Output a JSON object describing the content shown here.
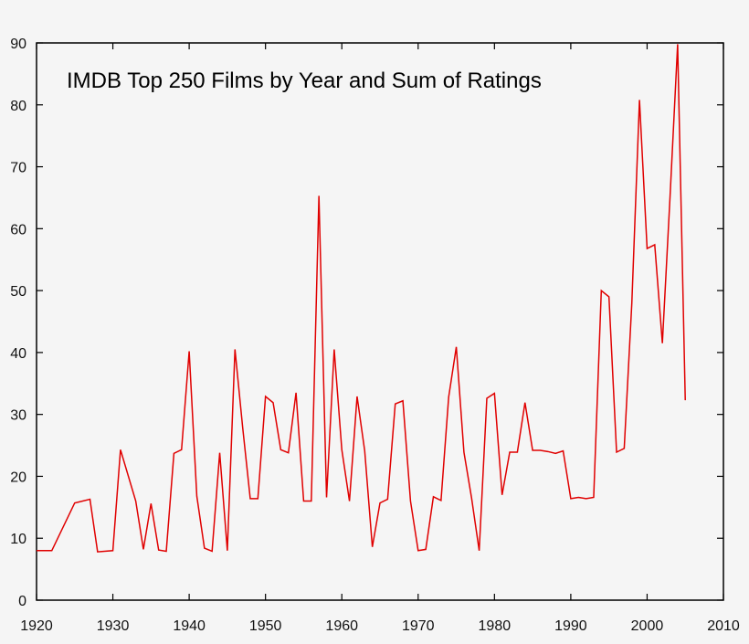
{
  "chart_data": {
    "type": "line",
    "title": "IMDB Top 250 Films by Year and Sum of Ratings",
    "xlabel": "",
    "ylabel": "",
    "xlim": [
      1920,
      2010
    ],
    "ylim": [
      0,
      90
    ],
    "x_ticks": [
      1920,
      1930,
      1940,
      1950,
      1960,
      1970,
      1980,
      1990,
      2000,
      2010
    ],
    "y_ticks": [
      0,
      10,
      20,
      30,
      40,
      50,
      60,
      70,
      80,
      90
    ],
    "grid": false,
    "series": [
      {
        "name": "Sum of Ratings",
        "color": "#e00000",
        "points": [
          [
            1920,
            8.0
          ],
          [
            1922,
            8.0
          ],
          [
            1925,
            15.7
          ],
          [
            1927,
            16.3
          ],
          [
            1928,
            7.8
          ],
          [
            1930,
            8.0
          ],
          [
            1931,
            24.3
          ],
          [
            1933,
            16.0
          ],
          [
            1934,
            8.2
          ],
          [
            1935,
            15.6
          ],
          [
            1936,
            8.1
          ],
          [
            1937,
            7.9
          ],
          [
            1938,
            23.7
          ],
          [
            1939,
            24.3
          ],
          [
            1940,
            40.2
          ],
          [
            1941,
            16.8
          ],
          [
            1942,
            8.4
          ],
          [
            1943,
            7.9
          ],
          [
            1944,
            23.8
          ],
          [
            1945,
            8.0
          ],
          [
            1946,
            40.5
          ],
          [
            1947,
            28.0
          ],
          [
            1948,
            16.4
          ],
          [
            1949,
            16.4
          ],
          [
            1950,
            32.9
          ],
          [
            1951,
            31.9
          ],
          [
            1952,
            24.3
          ],
          [
            1953,
            23.8
          ],
          [
            1954,
            33.5
          ],
          [
            1955,
            16.0
          ],
          [
            1956,
            16.0
          ],
          [
            1957,
            65.3
          ],
          [
            1958,
            16.6
          ],
          [
            1959,
            40.5
          ],
          [
            1960,
            24.3
          ],
          [
            1961,
            16.0
          ],
          [
            1962,
            32.9
          ],
          [
            1963,
            24.1
          ],
          [
            1964,
            8.6
          ],
          [
            1965,
            15.7
          ],
          [
            1966,
            16.3
          ],
          [
            1967,
            31.7
          ],
          [
            1968,
            32.2
          ],
          [
            1969,
            16.0
          ],
          [
            1970,
            8.0
          ],
          [
            1971,
            8.2
          ],
          [
            1972,
            16.7
          ],
          [
            1973,
            16.1
          ],
          [
            1974,
            32.8
          ],
          [
            1975,
            40.9
          ],
          [
            1976,
            23.9
          ],
          [
            1977,
            16.5
          ],
          [
            1978,
            8.0
          ],
          [
            1979,
            32.6
          ],
          [
            1980,
            33.4
          ],
          [
            1981,
            17.0
          ],
          [
            1982,
            23.9
          ],
          [
            1983,
            23.9
          ],
          [
            1984,
            31.9
          ],
          [
            1985,
            24.2
          ],
          [
            1986,
            24.2
          ],
          [
            1987,
            24.0
          ],
          [
            1988,
            23.7
          ],
          [
            1989,
            24.1
          ],
          [
            1990,
            16.4
          ],
          [
            1991,
            16.6
          ],
          [
            1992,
            16.4
          ],
          [
            1993,
            16.6
          ],
          [
            1994,
            50.0
          ],
          [
            1995,
            49.0
          ],
          [
            1996,
            23.9
          ],
          [
            1997,
            24.5
          ],
          [
            1998,
            48.0
          ],
          [
            1999,
            80.8
          ],
          [
            2000,
            56.8
          ],
          [
            2001,
            57.4
          ],
          [
            2002,
            41.5
          ],
          [
            2003,
            65.0
          ],
          [
            2004,
            89.8
          ],
          [
            2005,
            32.3
          ]
        ]
      }
    ]
  }
}
